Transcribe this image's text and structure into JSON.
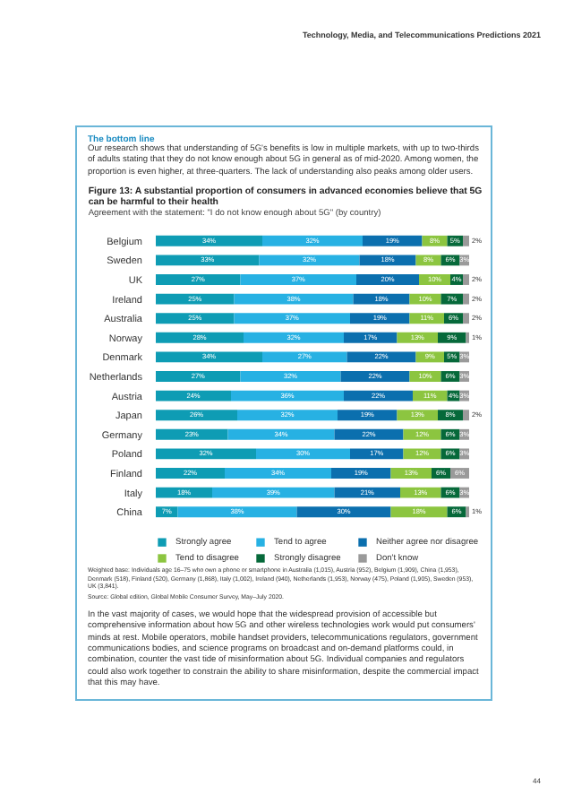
{
  "chart_data": {
    "type": "bar",
    "orientation": "horizontal",
    "stacked": true,
    "title": "Figure 13: A substantial proportion of consumers in advanced economies believe that 5G can be harmful to their health",
    "subtitle": "Agreement with the statement: \"I do not know enough about 5G\" (by country)",
    "categories": [
      "Belgium",
      "Sweden",
      "UK",
      "Ireland",
      "Australia",
      "Norway",
      "Denmark",
      "Netherlands",
      "Austria",
      "Japan",
      "Germany",
      "Poland",
      "Finland",
      "Italy",
      "China"
    ],
    "series": [
      {
        "name": "Strongly agree",
        "color": "#0e9cb4",
        "values": [
          34,
          33,
          27,
          25,
          25,
          28,
          34,
          27,
          24,
          26,
          23,
          32,
          22,
          18,
          7
        ],
        "value_labels": [
          "34%",
          "33%",
          "27%",
          "25%",
          "25%",
          "28%",
          "34%",
          "27%",
          "24%",
          "26%",
          "23%",
          "32%",
          "22%",
          "18%",
          "7%"
        ]
      },
      {
        "name": "Tend to agree",
        "color": "#27b1e3",
        "values": [
          32,
          32,
          37,
          38,
          37,
          32,
          27,
          32,
          36,
          32,
          34,
          30,
          34,
          39,
          38
        ],
        "value_labels": [
          "32%",
          "32%",
          "37%",
          "38%",
          "37%",
          "32%",
          "27%",
          "32%",
          "36%",
          "32%",
          "34%",
          "30%",
          "34%",
          "39%",
          "38%"
        ]
      },
      {
        "name": "Neither agree nor disagree",
        "color": "#0b6fae",
        "values": [
          19,
          18,
          20,
          18,
          19,
          17,
          22,
          22,
          22,
          19,
          22,
          17,
          19,
          21,
          30
        ],
        "value_labels": [
          "19%",
          "18%",
          "20%",
          "18%",
          "19%",
          "17%",
          "22%",
          "22%",
          "22%",
          "19%",
          "22%",
          "17%",
          "19%",
          "21%",
          "30%"
        ]
      },
      {
        "name": "Tend to disagree",
        "color": "#8cc540",
        "values": [
          8,
          8,
          10,
          10,
          11,
          13,
          9,
          10,
          11,
          13,
          12,
          12,
          13,
          13,
          18
        ],
        "value_labels": [
          "8%",
          "8%",
          "10%",
          "10%",
          "11%",
          "13%",
          "9%",
          "10%",
          "11%",
          "13%",
          "12%",
          "12%",
          "13%",
          "13%",
          "18%"
        ]
      },
      {
        "name": "Strongly disagree",
        "color": "#06693a",
        "values": [
          5,
          6,
          4,
          7,
          6,
          9,
          5,
          6,
          4,
          8,
          6,
          6,
          6,
          6,
          6
        ],
        "value_labels": [
          "5%",
          "6%",
          "4%",
          "7%",
          "6%",
          "9%",
          "5%",
          "6%",
          "4%",
          "8%",
          "6%",
          "6%",
          "6%",
          "6%",
          "6%"
        ]
      },
      {
        "name": "Don't know",
        "color": "#9a9a9a",
        "values": [
          2,
          3,
          2,
          2,
          2,
          1,
          3,
          3,
          3,
          2,
          3,
          3,
          6,
          3,
          1
        ],
        "value_labels": [
          "2%",
          "3%",
          "2%",
          "2%",
          "2%",
          "1%",
          "3%",
          "3%",
          "3%",
          "2%",
          "3%",
          "3%",
          "6%",
          "3%",
          "1%"
        ]
      }
    ],
    "legend": "bottom",
    "annotations": [
      "Technology, Media, and Telecommunications Predictions 2021",
      "The bottom line",
      "Our research shows that understanding of 5G's benefits is low in multiple markets, with up to two-thirds of adults stating that they do not know enough about 5G in general as of mid-2020. Among women, the proportion is even higher, at three-quarters. The lack of understanding also peaks among older users.",
      "Weighted base: Individuals age 16–75 who own a phone or smartphone in Australia (1,015), Austria (952), Belgium (1,909), China (1,953), Denmark (518), Finland (520), Germany (1,868), Italy (1,002), Ireland (940), Netherlands (1,953), Norway (475), Poland (1,905), Sweden (953), UK (3,841).",
      "Source: Global edition, Global Mobile Consumer Survey, May–July 2020.",
      "In the vast majority of cases, we would hope that the widespread provision of accessible but comprehensive information about how 5G and other wireless technologies work would put consumers' minds at rest. Mobile operators, mobile handset providers, telecommunications regulators, government communications bodies, and science programs on broadcast and on-demand platforms could, in combination, counter the vast tide of misinformation about 5G. Individual companies and regulators could also work together to constrain the ability to share misinformation, despite the commercial impact that this may have.",
      "44"
    ]
  }
}
